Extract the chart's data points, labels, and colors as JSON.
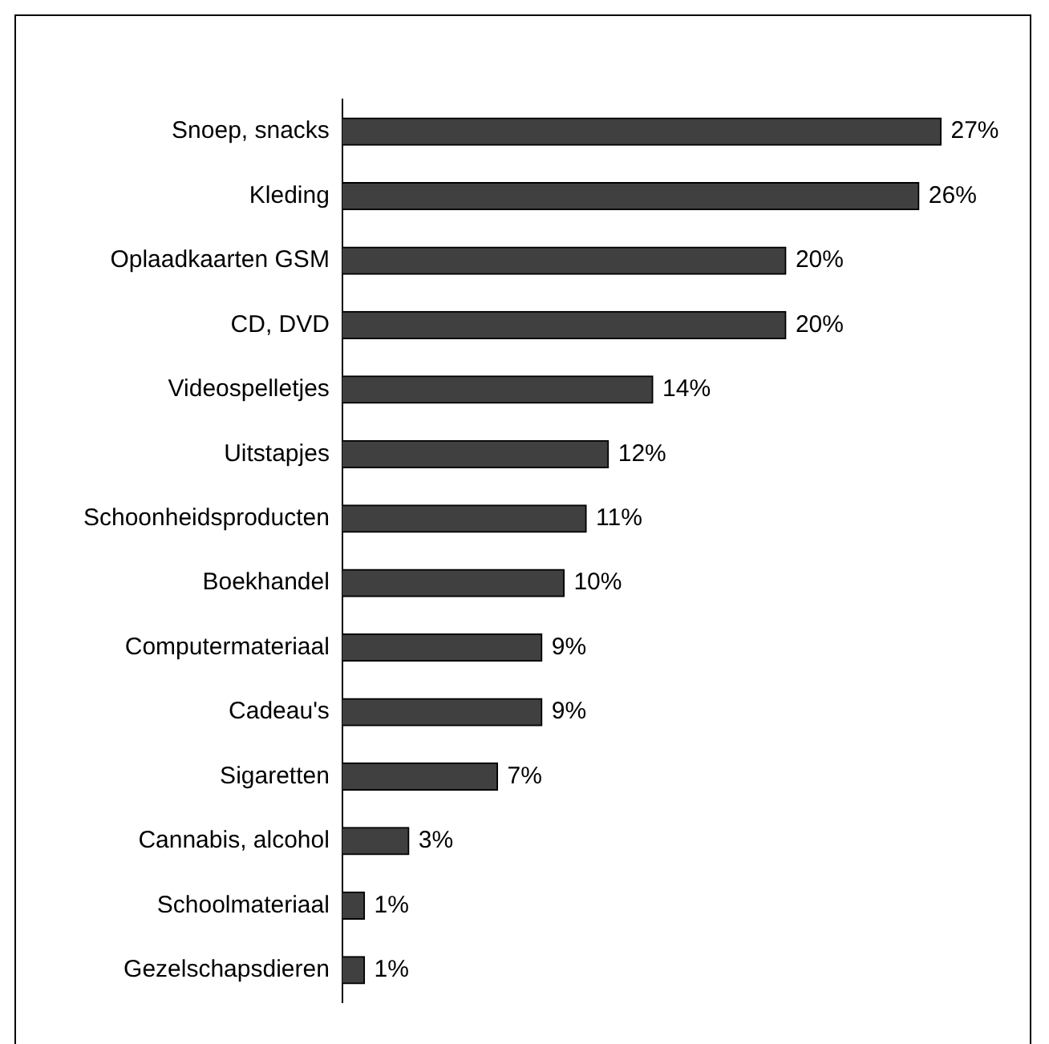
{
  "chart_data": {
    "type": "bar",
    "orientation": "horizontal",
    "categories": [
      "Snoep, snacks",
      "Kleding",
      "Oplaadkaarten GSM",
      "CD, DVD",
      "Videospelletjes",
      "Uitstapjes",
      "Schoonheidsproducten",
      "Boekhandel",
      "Computermateriaal",
      "Cadeau's",
      "Sigaretten",
      "Cannabis, alcohol",
      "Schoolmateriaal",
      "Gezelschapsdieren"
    ],
    "values": [
      27,
      26,
      20,
      20,
      14,
      12,
      11,
      10,
      9,
      9,
      7,
      3,
      1,
      1
    ],
    "value_labels": [
      "27%",
      "26%",
      "20%",
      "20%",
      "14%",
      "12%",
      "11%",
      "10%",
      "9%",
      "9%",
      "7%",
      "3%",
      "1%",
      "1%"
    ],
    "color": "#404040",
    "grid": false,
    "legend": false
  }
}
